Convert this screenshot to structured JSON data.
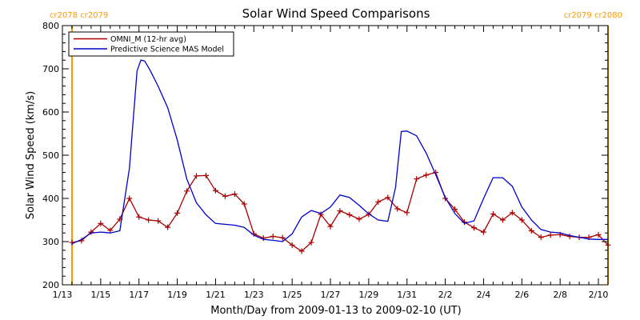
{
  "chart_data": {
    "type": "line",
    "title": "Solar Wind Speed Comparisons",
    "xlabel": "Month/Day from 2009-01-13 to 2009-02-10 (UT)",
    "ylabel": "Solar Wind Speed (km/s)",
    "xlim": [
      0,
      28.5
    ],
    "ylim": [
      200,
      800
    ],
    "x_ticks": [
      {
        "x": 0,
        "label": "1/13"
      },
      {
        "x": 2,
        "label": "1/15"
      },
      {
        "x": 4,
        "label": "1/17"
      },
      {
        "x": 6,
        "label": "1/19"
      },
      {
        "x": 8,
        "label": "1/21"
      },
      {
        "x": 10,
        "label": "1/23"
      },
      {
        "x": 12,
        "label": "1/25"
      },
      {
        "x": 14,
        "label": "1/27"
      },
      {
        "x": 16,
        "label": "1/29"
      },
      {
        "x": 18,
        "label": "1/31"
      },
      {
        "x": 20,
        "label": "2/2"
      },
      {
        "x": 22,
        "label": "2/4"
      },
      {
        "x": 24,
        "label": "2/6"
      },
      {
        "x": 26,
        "label": "2/8"
      },
      {
        "x": 28,
        "label": "2/10"
      }
    ],
    "y_ticks": [
      200,
      300,
      400,
      500,
      600,
      700,
      800
    ],
    "legend_position": "top-left",
    "series": [
      {
        "name": "OMNI_M (12-hr avg)",
        "color": "#aa0000",
        "marker": "plus",
        "x": [
          0.5,
          1.0,
          1.5,
          2.0,
          2.5,
          3.0,
          3.5,
          4.0,
          4.5,
          5.0,
          5.5,
          6.0,
          6.5,
          7.0,
          7.5,
          8.0,
          8.5,
          9.0,
          9.5,
          10.0,
          10.5,
          11.0,
          11.5,
          12.0,
          12.5,
          13.0,
          13.5,
          14.0,
          14.5,
          15.0,
          15.5,
          16.0,
          16.5,
          17.0,
          17.5,
          18.0,
          18.5,
          19.0,
          19.5,
          20.0,
          20.5,
          21.0,
          21.5,
          22.0,
          22.5,
          23.0,
          23.5,
          24.0,
          24.5,
          25.0,
          25.5,
          26.0,
          26.5,
          27.0,
          27.5,
          28.0,
          28.5
        ],
        "values": [
          298,
          302,
          322,
          342,
          326,
          352,
          400,
          357,
          350,
          348,
          333,
          366,
          417,
          452,
          453,
          418,
          405,
          410,
          387,
          318,
          308,
          312,
          309,
          292,
          278,
          298,
          363,
          335,
          371,
          362,
          352,
          363,
          392,
          402,
          376,
          367,
          445,
          454,
          460,
          400,
          375,
          345,
          332,
          322,
          364,
          350,
          367,
          350,
          325,
          310,
          315,
          316,
          312,
          310,
          310,
          316,
          292
        ]
      },
      {
        "name": "Predictive Science MAS Model",
        "color": "#0000cc",
        "marker": "none",
        "x": [
          0.5,
          1.0,
          1.5,
          2.0,
          2.5,
          3.0,
          3.5,
          3.9,
          4.1,
          4.3,
          4.6,
          5.0,
          5.5,
          6.0,
          6.5,
          7.0,
          7.5,
          8.0,
          8.5,
          9.0,
          9.5,
          10.0,
          10.5,
          11.0,
          11.5,
          12.0,
          12.5,
          13.0,
          13.5,
          14.0,
          14.5,
          15.0,
          15.5,
          16.0,
          16.5,
          17.0,
          17.4,
          17.7,
          18.0,
          18.5,
          19.0,
          19.5,
          20.0,
          20.5,
          21.0,
          21.5,
          22.0,
          22.5,
          23.0,
          23.5,
          24.0,
          24.5,
          25.0,
          25.5,
          26.0,
          26.5,
          27.0,
          27.5,
          28.0,
          28.5
        ],
        "values": [
          295,
          305,
          320,
          322,
          320,
          325,
          470,
          695,
          720,
          718,
          695,
          660,
          610,
          535,
          445,
          390,
          362,
          342,
          340,
          338,
          333,
          315,
          305,
          303,
          300,
          318,
          357,
          372,
          365,
          380,
          408,
          402,
          384,
          364,
          350,
          347,
          425,
          555,
          556,
          545,
          505,
          455,
          402,
          365,
          342,
          348,
          400,
          448,
          448,
          428,
          380,
          350,
          328,
          322,
          320,
          314,
          310,
          306,
          305,
          305
        ]
      }
    ],
    "markers": [
      {
        "x": 0.5,
        "label": "cr2078 cr2079",
        "label_side": "left"
      },
      {
        "x": 28.5,
        "label": "cr2079 cr2080",
        "label_side": "right"
      }
    ],
    "marker_color": "#ff9900"
  }
}
